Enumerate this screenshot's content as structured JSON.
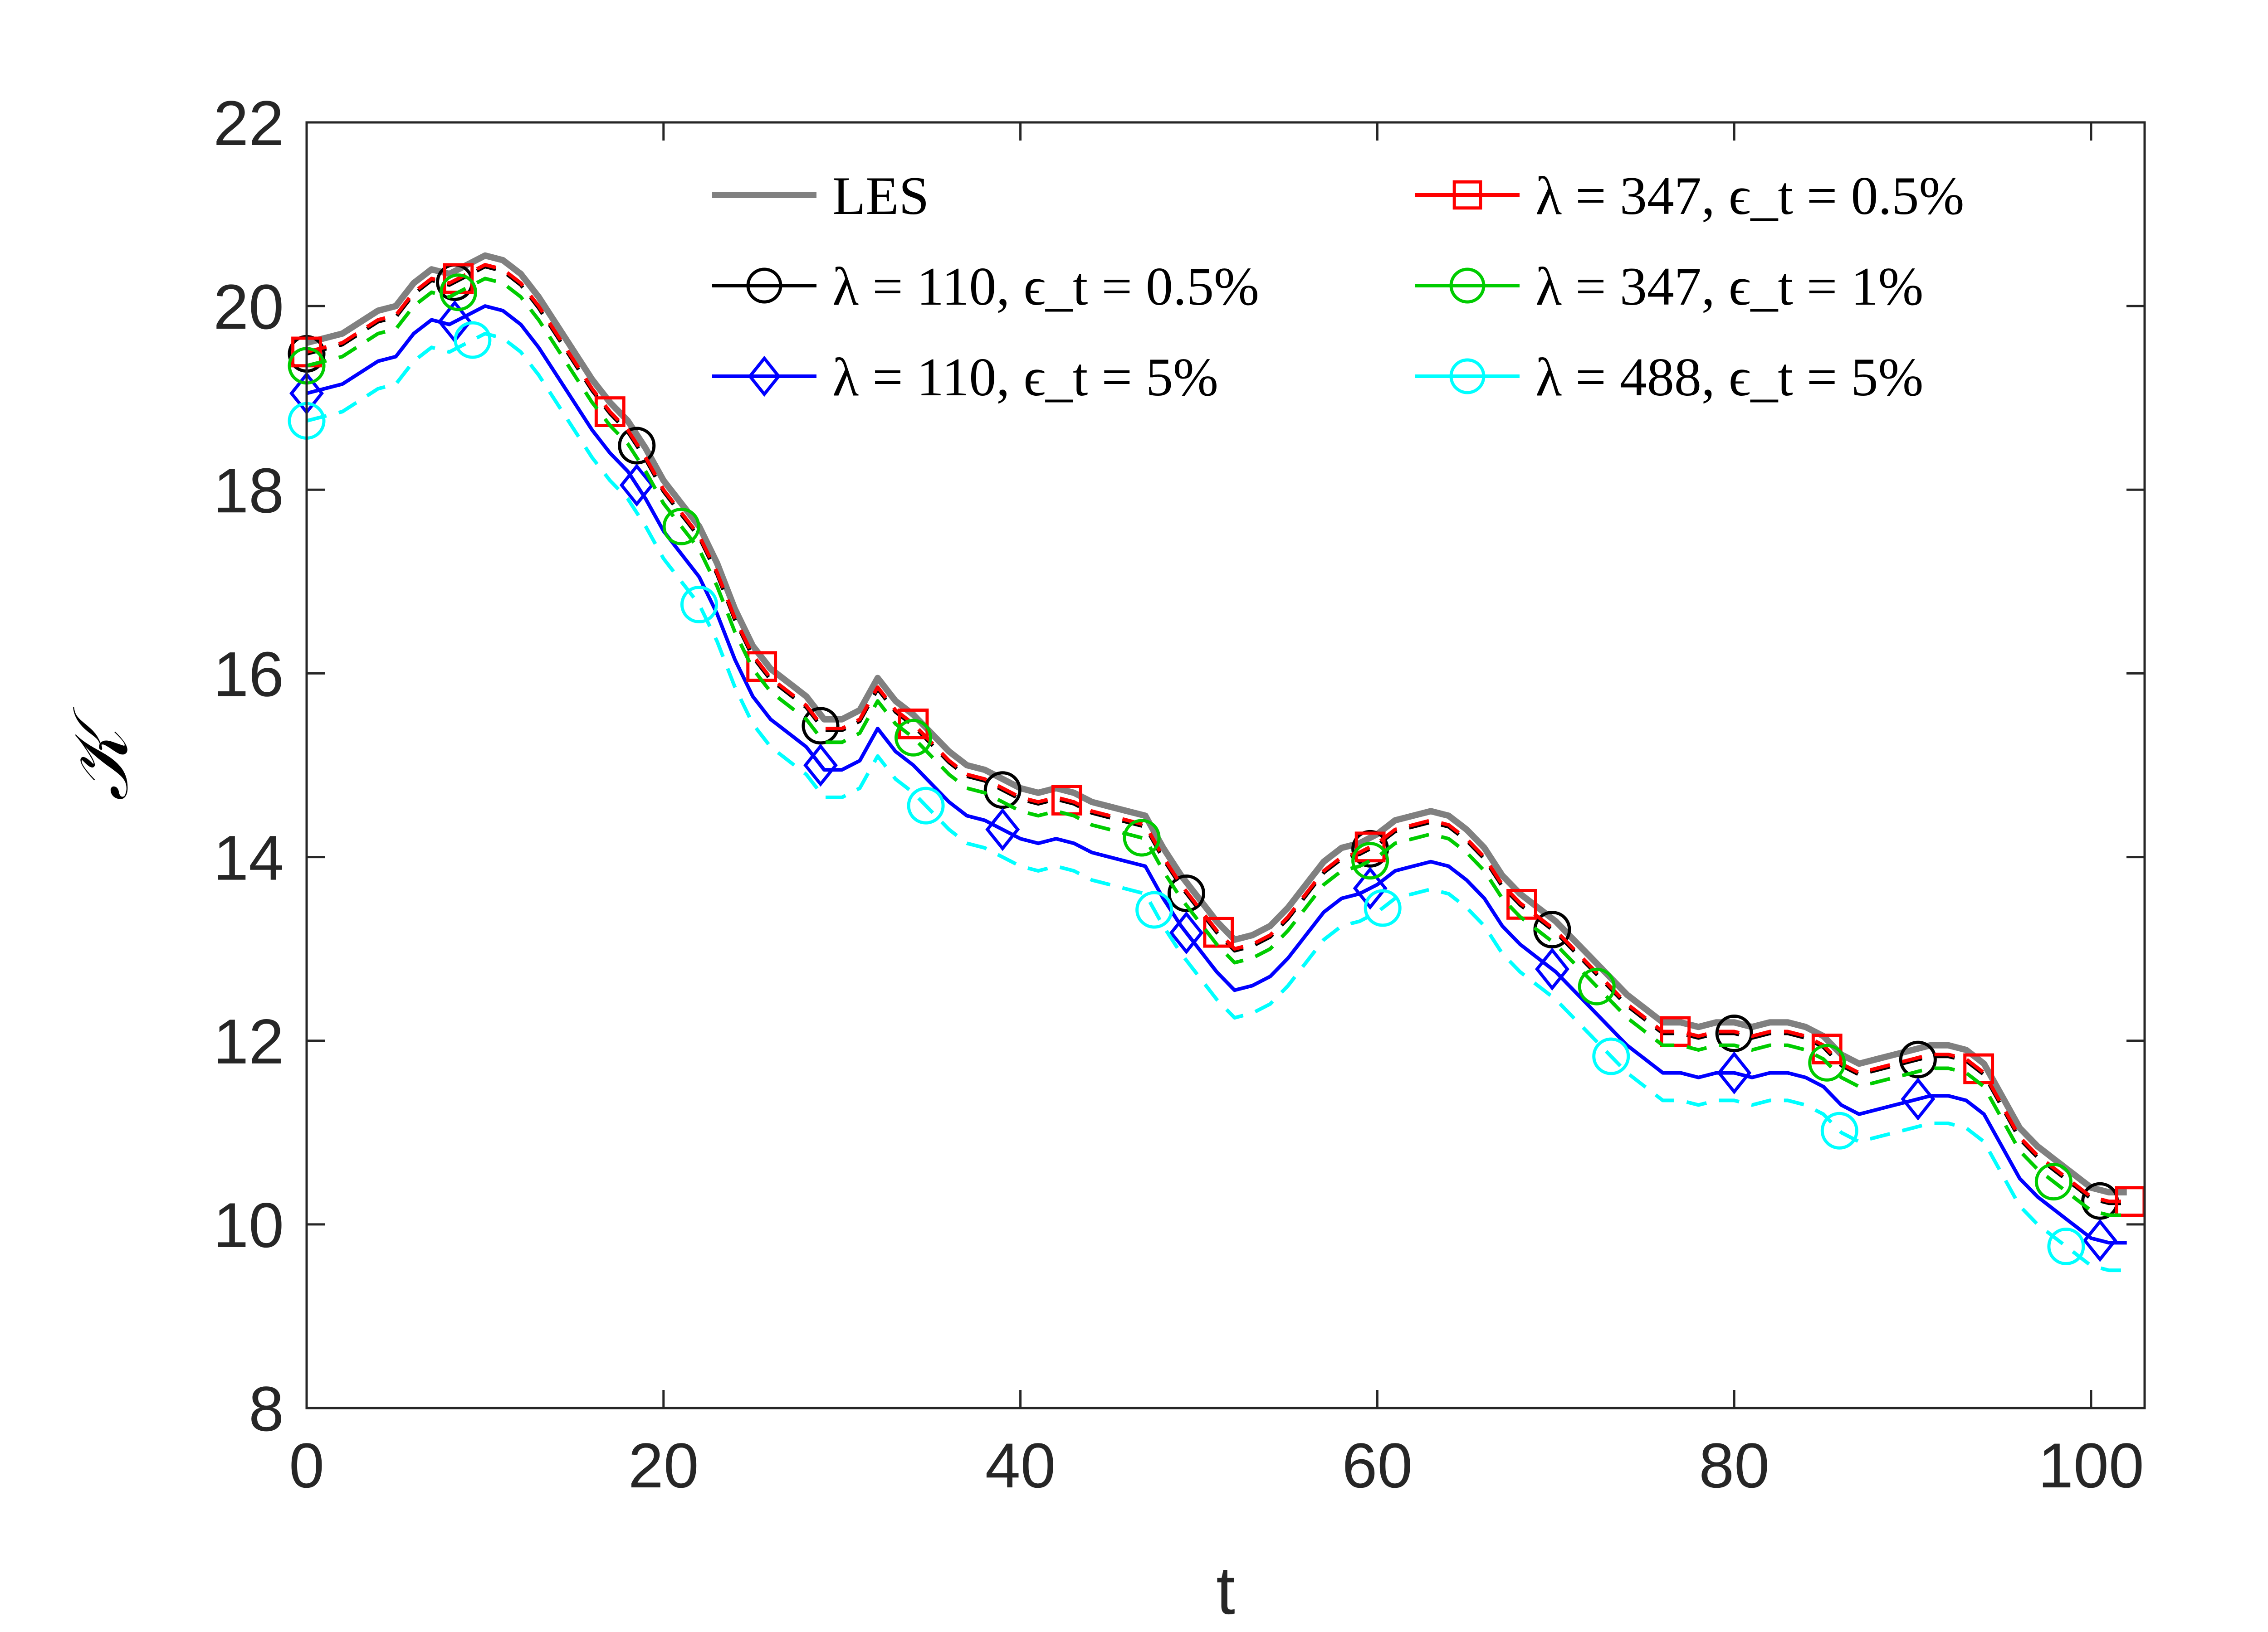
{
  "chart_data": {
    "type": "line",
    "title": "",
    "xlabel": "t",
    "ylabel": "𝒦",
    "xlim": [
      0,
      103
    ],
    "ylim": [
      8,
      22
    ],
    "xticks": [
      0,
      20,
      40,
      60,
      80,
      100
    ],
    "yticks": [
      8,
      10,
      12,
      14,
      16,
      18,
      20,
      22
    ],
    "xtick_labels": [
      "0",
      "20",
      "40",
      "60",
      "80",
      "100"
    ],
    "ytick_labels": [
      "8",
      "10",
      "12",
      "14",
      "16",
      "18",
      "20",
      "22"
    ],
    "legend_position": "top-right",
    "base_curve": {
      "x": [
        0,
        2,
        4,
        5,
        6,
        7,
        8,
        9,
        10,
        11,
        12,
        13,
        14,
        15,
        16,
        17,
        18,
        19,
        20,
        21,
        22,
        23,
        24,
        25,
        26,
        27,
        28,
        29,
        30,
        31,
        32,
        33,
        34,
        35,
        36,
        37,
        38,
        39,
        40,
        41,
        42,
        43,
        44,
        45,
        46,
        47,
        48,
        49,
        50,
        51,
        52,
        53,
        54,
        55,
        56,
        57,
        58,
        59,
        60,
        61,
        62,
        63,
        64,
        65,
        66,
        67,
        68,
        69,
        70,
        71,
        72,
        73,
        74,
        75,
        76,
        77,
        78,
        79,
        80,
        81,
        82,
        83,
        84,
        85,
        86,
        87,
        88,
        89,
        90,
        91,
        92,
        93,
        94,
        95,
        96,
        97,
        98,
        99,
        100,
        101,
        102
      ],
      "y": [
        19.6,
        19.7,
        19.95,
        20.0,
        20.25,
        20.4,
        20.35,
        20.45,
        20.55,
        20.5,
        20.35,
        20.1,
        19.8,
        19.5,
        19.2,
        18.95,
        18.75,
        18.45,
        18.1,
        17.85,
        17.6,
        17.2,
        16.7,
        16.3,
        16.05,
        15.9,
        15.75,
        15.5,
        15.5,
        15.6,
        15.95,
        15.7,
        15.55,
        15.35,
        15.15,
        15.0,
        14.95,
        14.85,
        14.75,
        14.7,
        14.75,
        14.7,
        14.6,
        14.55,
        14.5,
        14.45,
        14.1,
        13.8,
        13.55,
        13.3,
        13.1,
        13.15,
        13.25,
        13.45,
        13.7,
        13.95,
        14.1,
        14.15,
        14.25,
        14.4,
        14.45,
        14.5,
        14.45,
        14.3,
        14.1,
        13.8,
        13.6,
        13.45,
        13.3,
        13.1,
        12.9,
        12.7,
        12.5,
        12.35,
        12.2,
        12.2,
        12.15,
        12.2,
        12.2,
        12.15,
        12.2,
        12.2,
        12.15,
        12.05,
        11.85,
        11.75,
        11.8,
        11.85,
        11.9,
        11.95,
        11.95,
        11.9,
        11.75,
        11.4,
        11.05,
        10.85,
        10.7,
        10.55,
        10.4,
        10.35,
        10.35
      ]
    },
    "series": [
      {
        "name": "LES",
        "color": "#808080",
        "line": "solid",
        "marker": "none",
        "offset": 0.0,
        "markers_x": []
      },
      {
        "name": "λ = 110,  ϵ_t = 0.5%",
        "color": "#000000",
        "line": "dashed",
        "marker": "circle",
        "offset": -0.12,
        "markers_x": [
          0,
          8.3,
          18.5,
          28.8,
          39,
          49.3,
          59.6,
          69.8,
          80,
          90.3,
          100.5
        ]
      },
      {
        "name": "λ = 110,  ϵ_t = 5%",
        "color": "#0000ff",
        "line": "solid",
        "marker": "diamond",
        "offset": -0.55,
        "markers_x": [
          0,
          8.3,
          18.5,
          28.8,
          39,
          49.3,
          59.6,
          69.8,
          80,
          90.3,
          100.5
        ]
      },
      {
        "name": "λ = 347,  ϵ_t = 0.5%",
        "color": "#ff0000",
        "line": "dashed",
        "marker": "square",
        "offset": -0.1,
        "markers_x": [
          0,
          8.5,
          17,
          25.5,
          34,
          42.6,
          51.1,
          59.6,
          68.1,
          76.7,
          85.2,
          93.7,
          102.2
        ]
      },
      {
        "name": "λ = 347,  ϵ_t = 1%",
        "color": "#00cc00",
        "line": "dashed",
        "marker": "circle",
        "offset": -0.25,
        "markers_x": [
          0,
          8.5,
          21,
          34,
          46.8,
          59.6,
          72.3,
          85.2,
          97.9
        ]
      },
      {
        "name": "λ = 488,  ϵ_t = 5%",
        "color": "#00ffff",
        "line": "dashed",
        "marker": "circle",
        "offset": -0.85,
        "markers_x": [
          0,
          9.3,
          22,
          34.7,
          47.5,
          60.3,
          73.1,
          85.9,
          98.6
        ]
      }
    ]
  }
}
